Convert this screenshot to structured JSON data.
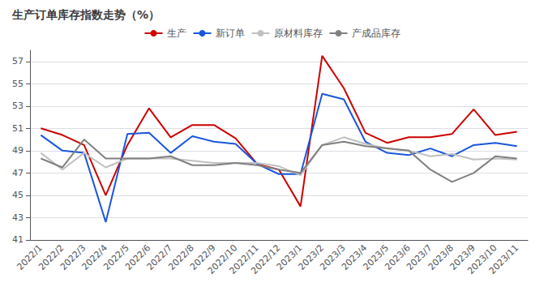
{
  "chart_data": {
    "type": "line",
    "title": "生产订单库存指数走势（%）",
    "categories": [
      "2022/1",
      "2022/2",
      "2022/3",
      "2022/4",
      "2022/5",
      "2022/6",
      "2022/7",
      "2022/8",
      "2022/9",
      "2022/10",
      "2022/11",
      "2022/12",
      "2023/1",
      "2023/2",
      "2023/3",
      "2023/4",
      "2023/5",
      "2023/6",
      "2023/7",
      "2023/8",
      "2023/9",
      "2023/10",
      "2023/11"
    ],
    "series": [
      {
        "name": "生产",
        "color": "#cc0000",
        "values": [
          51.0,
          50.4,
          49.5,
          45.0,
          49.5,
          52.8,
          50.2,
          51.3,
          51.3,
          50.1,
          47.8,
          47.3,
          44.0,
          57.5,
          54.6,
          50.6,
          49.7,
          50.2,
          50.2,
          50.5,
          52.7,
          50.4,
          50.7
        ]
      },
      {
        "name": "新订单",
        "color": "#1a56db",
        "values": [
          50.4,
          49.0,
          48.8,
          42.6,
          50.5,
          50.6,
          48.8,
          50.3,
          49.8,
          49.6,
          47.8,
          46.9,
          46.9,
          54.1,
          53.6,
          49.8,
          48.8,
          48.6,
          49.2,
          48.5,
          49.5,
          49.7,
          49.4
        ]
      },
      {
        "name": "原材料库存",
        "color": "#c0c0c0",
        "values": [
          48.8,
          47.3,
          48.8,
          47.5,
          48.3,
          48.3,
          48.3,
          48.1,
          47.9,
          47.9,
          47.9,
          47.6,
          46.8,
          49.5,
          50.2,
          49.6,
          49.2,
          49.0,
          48.5,
          48.7,
          48.2,
          48.3,
          48.2
        ]
      },
      {
        "name": "产成品库存",
        "color": "#808080",
        "values": [
          48.3,
          47.5,
          50.0,
          48.3,
          48.3,
          48.3,
          48.5,
          47.7,
          47.7,
          47.9,
          47.7,
          47.3,
          47.0,
          49.5,
          49.8,
          49.4,
          49.2,
          49.0,
          47.3,
          46.2,
          47.0,
          48.5,
          48.3
        ]
      }
    ],
    "ylim": [
      41,
      58
    ],
    "yticks": [
      41,
      43,
      45,
      47,
      49,
      51,
      53,
      55,
      57
    ],
    "grid": true,
    "legend": "top"
  }
}
